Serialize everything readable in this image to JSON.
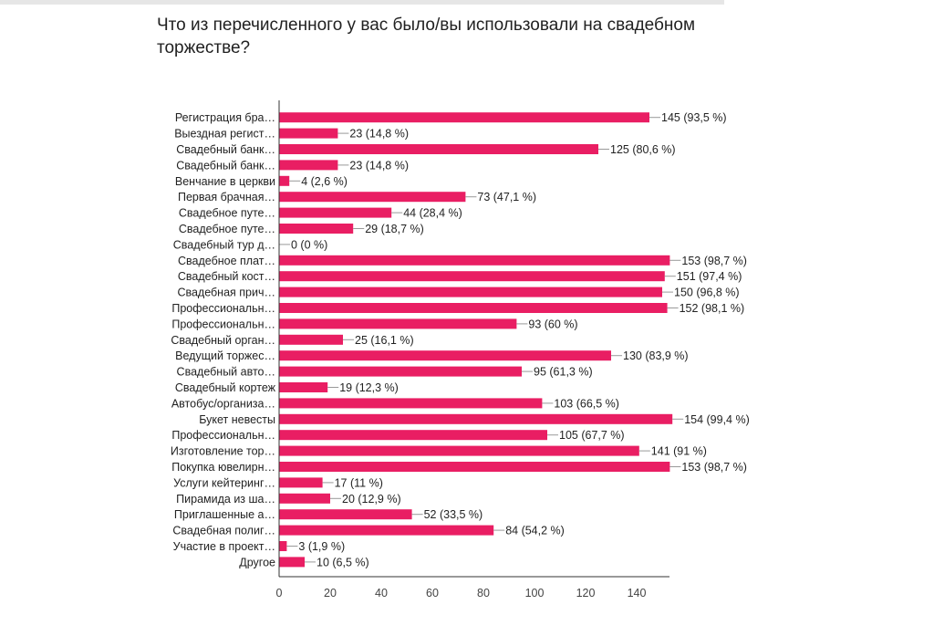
{
  "chart_data": {
    "type": "bar",
    "orientation": "horizontal",
    "title": "Что из перечисленного у вас было/вы использовали на свадебном торжестве?",
    "xlim": [
      0,
      155
    ],
    "xticks": [
      0,
      20,
      40,
      60,
      80,
      100,
      120,
      140
    ],
    "grid": false,
    "bar_color": "#e91e63",
    "categories": [
      "Регистрация бра…",
      "Выездная регист…",
      "Свадебный банк…",
      "Свадебный банк…",
      "Венчание в церкви",
      "Первая брачная…",
      "Свадебное путе…",
      "Свадебное путе…",
      "Свадебный тур д…",
      "Свадебное плат…",
      "Свадебный кост…",
      "Свадебная прич…",
      "Профессиональн…",
      "Профессиональн…",
      "Свадебный орган…",
      "Ведущий торжес…",
      "Свадебный авто…",
      "Свадебный кортеж",
      "Автобус/организа…",
      "Букет невесты",
      "Профессиональн…",
      "Изготовление тор…",
      "Покупка ювелирн…",
      "Услуги кейтеринг…",
      "Пирамида из ша…",
      "Приглашенные а…",
      "Свадебная полиг…",
      "Участие в проект…",
      "Другое"
    ],
    "values": [
      145,
      23,
      125,
      23,
      4,
      73,
      44,
      29,
      0,
      153,
      151,
      150,
      152,
      93,
      25,
      130,
      95,
      19,
      103,
      154,
      105,
      141,
      153,
      17,
      20,
      52,
      84,
      3,
      10
    ],
    "data_labels": [
      "145 (93,5 %)",
      "23 (14,8 %)",
      "125 (80,6 %)",
      "23 (14,8 %)",
      "4 (2,6 %)",
      "73 (47,1 %)",
      "44 (28,4 %)",
      "29 (18,7 %)",
      "0 (0 %)",
      "153 (98,7 %)",
      "151 (97,4 %)",
      "150 (96,8 %)",
      "152 (98,1 %)",
      "93 (60 %)",
      "25 (16,1 %)",
      "130 (83,9 %)",
      "95 (61,3 %)",
      "19 (12,3 %)",
      "103 (66,5 %)",
      "154 (99,4 %)",
      "105 (67,7 %)",
      "141 (91 %)",
      "153 (98,7 %)",
      "17 (11 %)",
      "20 (12,9 %)",
      "52 (33,5 %)",
      "84 (54,2 %)",
      "3 (1,9 %)",
      "10 (6,5 %)"
    ]
  }
}
